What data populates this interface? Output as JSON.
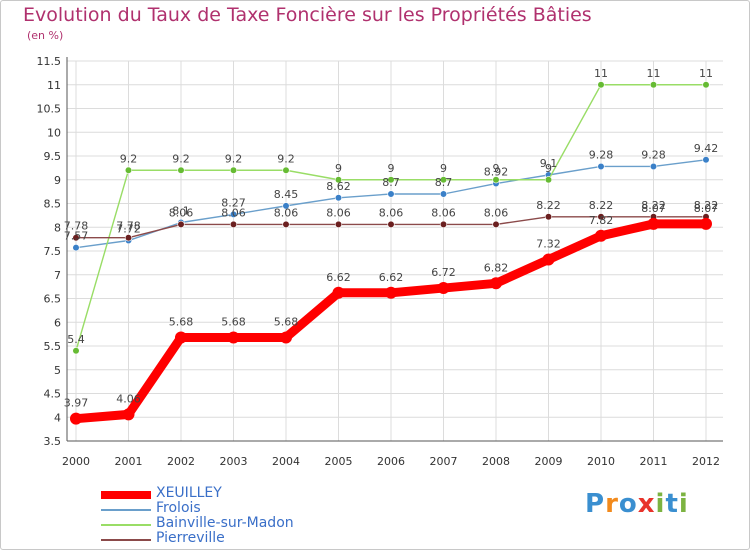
{
  "title": "Evolution du Taux de Taxe Foncière sur les Propriétés Bâties",
  "unit_label": "(en %)",
  "brand": {
    "text": "Proxiti",
    "letters": [
      "P",
      "r",
      "o",
      "x",
      "i",
      "t",
      "i"
    ],
    "colors": [
      "#3a8fd0",
      "#f28a1c",
      "#3a8fd0",
      "#e8332b",
      "#7cb341",
      "#3a8fd0",
      "#7cb341"
    ]
  },
  "chart_data": {
    "type": "line",
    "title": "Evolution du Taux de Taxe Foncière sur les Propriétés Bâties",
    "ylabel": "(en %)",
    "xlabel": "",
    "x": [
      "2000",
      "2001",
      "2002",
      "2003",
      "2004",
      "2005",
      "2006",
      "2007",
      "2008",
      "2009",
      "2010",
      "2011",
      "2012"
    ],
    "ylim": [
      3.5,
      11.5
    ],
    "yticks": [
      "3.5",
      "4",
      "4.5",
      "5",
      "5.5",
      "6",
      "6.5",
      "7",
      "7.5",
      "8",
      "8.5",
      "9",
      "9.5",
      "10",
      "10.5",
      "11",
      "11.5"
    ],
    "grid": true,
    "legend_position": "bottom-left",
    "series": [
      {
        "name": "XEUILLEY",
        "color": "#ff0000",
        "emphasis": "thick",
        "values": [
          3.97,
          4.06,
          5.68,
          5.68,
          5.68,
          6.62,
          6.62,
          6.72,
          6.82,
          7.32,
          7.82,
          8.07,
          8.07
        ],
        "labels": [
          "3.97",
          "4.06",
          "5.68",
          "5.68",
          "5.68",
          "6.62",
          "6.62",
          "6.72",
          "6.82",
          "7.32",
          "7.82",
          "8.07",
          "8.07"
        ]
      },
      {
        "name": "Frolois",
        "color": "#6a9fcb",
        "marker": "#3a80c8",
        "values": [
          7.57,
          7.72,
          8.1,
          8.27,
          8.45,
          8.62,
          8.7,
          8.7,
          8.92,
          9.1,
          9.28,
          9.28,
          9.42
        ],
        "labels": [
          "7.57",
          "7.72",
          "8.1",
          "8.27",
          "8.45",
          "8.62",
          "8.7",
          "8.7",
          "8.92",
          "9.1",
          "9.28",
          "9.28",
          "9.42"
        ]
      },
      {
        "name": "Bainville-sur-Madon",
        "color": "#99dd66",
        "marker": "#66bb33",
        "values": [
          5.4,
          9.2,
          9.2,
          9.2,
          9.2,
          9.0,
          9.0,
          9.0,
          9.0,
          9.0,
          11.0,
          11.0,
          11.0
        ],
        "labels": [
          "5.4",
          "9.2",
          "9.2",
          "9.2",
          "9.2",
          "9",
          "9",
          "9",
          "9",
          "9",
          "11",
          "11",
          "11"
        ]
      },
      {
        "name": "Pierreville",
        "color": "#8b4a4a",
        "marker": "#6b1f1f",
        "values": [
          7.78,
          7.78,
          8.06,
          8.06,
          8.06,
          8.06,
          8.06,
          8.06,
          8.06,
          8.22,
          8.22,
          8.22,
          8.22
        ],
        "labels": [
          "7.78",
          "7.78",
          "8.06",
          "8.06",
          "8.06",
          "8.06",
          "8.06",
          "8.06",
          "8.06",
          "8.22",
          "8.22",
          "8.22",
          "8.22"
        ]
      }
    ]
  }
}
